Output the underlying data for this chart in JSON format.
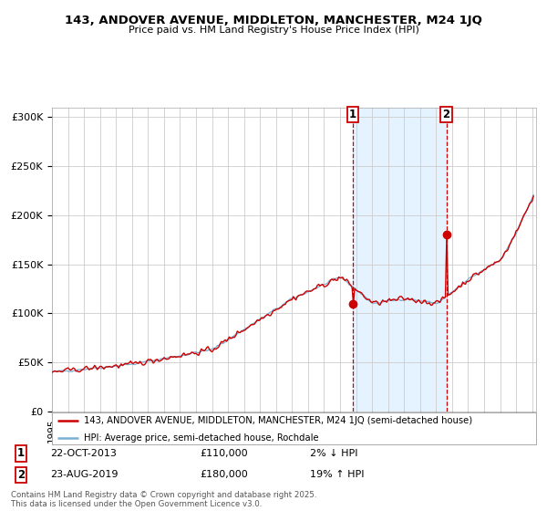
{
  "title_line1": "143, ANDOVER AVENUE, MIDDLETON, MANCHESTER, M24 1JQ",
  "title_line2": "Price paid vs. HM Land Registry's House Price Index (HPI)",
  "legend_label_red": "143, ANDOVER AVENUE, MIDDLETON, MANCHESTER, M24 1JQ (semi-detached house)",
  "legend_label_blue": "HPI: Average price, semi-detached house, Rochdale",
  "footer": "Contains HM Land Registry data © Crown copyright and database right 2025.\nThis data is licensed under the Open Government Licence v3.0.",
  "ylabel_ticks": [
    "£0",
    "£50K",
    "£100K",
    "£150K",
    "£200K",
    "£250K",
    "£300K"
  ],
  "ylim": [
    0,
    310000
  ],
  "background_color": "#ffffff",
  "plot_bg_color": "#ffffff",
  "grid_color": "#cccccc",
  "red_line_color": "#cc0000",
  "blue_line_color": "#7bafd4",
  "shade_color": "#ddeeff",
  "dashed_color": "#cc0000",
  "marker_color": "#cc0000",
  "label_box_color": "#cc0000",
  "sale1_year": 2013.81,
  "sale1_price": 110000,
  "sale2_year": 2019.64,
  "sale2_price": 180000
}
